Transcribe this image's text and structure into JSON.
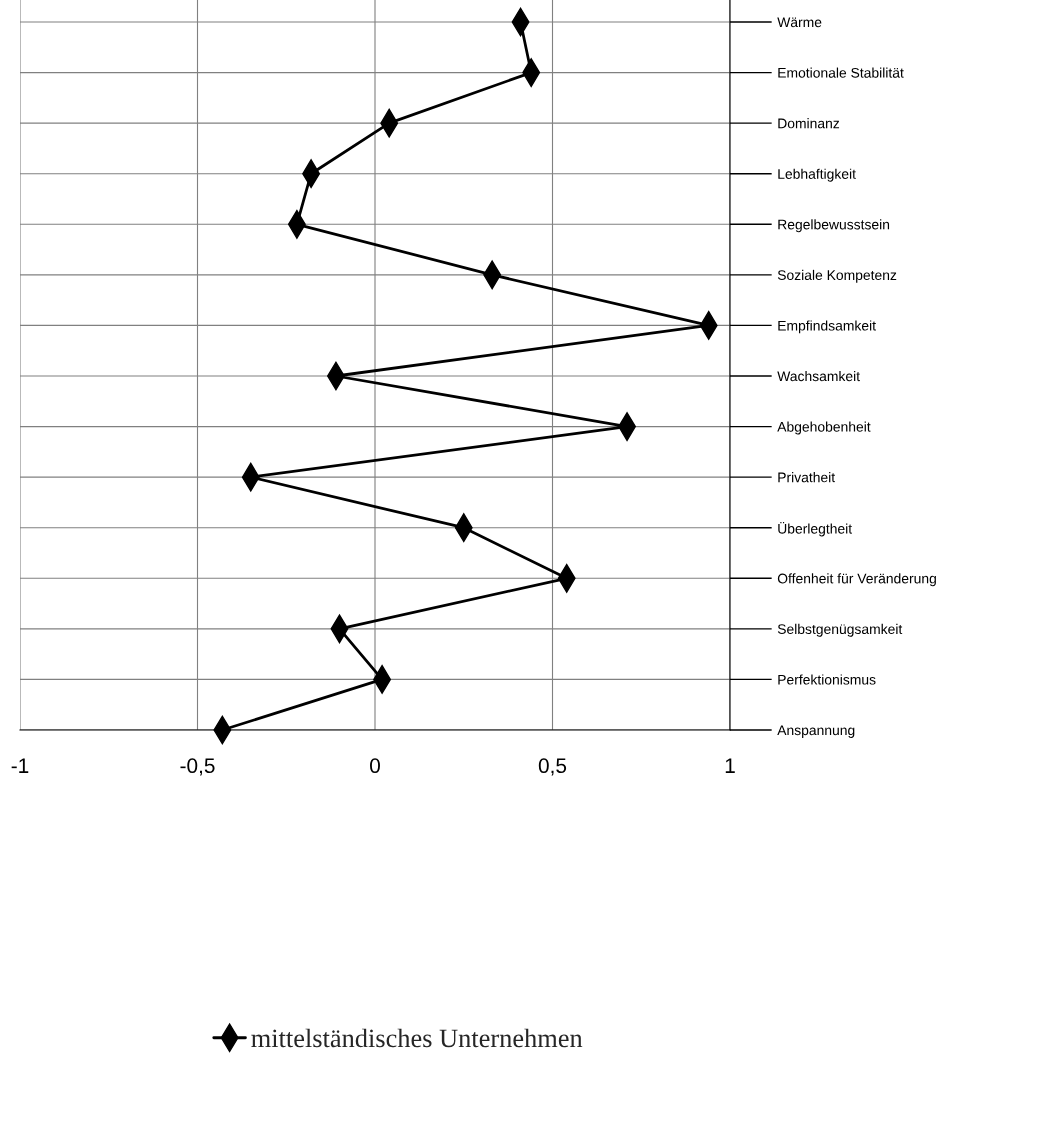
{
  "chart_data": {
    "type": "line",
    "orientation": "horizontal",
    "categories": [
      "Wärme",
      "Emotionale Stabilität",
      "Dominanz",
      "Lebhaftigkeit",
      "Regelbewusstsein",
      "Soziale Kompetenz",
      "Empfindsamkeit",
      "Wachsamkeit",
      "Abgehobenheit",
      "Privatheit",
      "Überlegtheit",
      "Offenheit für Veränderung",
      "Selbstgenügsamkeit",
      "Perfektionismus",
      "Anspannung"
    ],
    "series": [
      {
        "name": "mittelständisches Unternehmen",
        "color": "#000000",
        "values": [
          0.41,
          0.44,
          0.04,
          -0.18,
          -0.22,
          0.33,
          0.94,
          -0.11,
          0.71,
          -0.35,
          0.25,
          0.54,
          -0.1,
          0.02,
          -0.43
        ]
      }
    ],
    "xlim": [
      -1,
      1
    ],
    "xticks": [
      -1,
      {
        "value": -0.5,
        "label": "-0,5"
      },
      0,
      {
        "value": 0.5,
        "label": "0,5"
      },
      1
    ],
    "grid": true,
    "legend": "bottom",
    "marker": "diamond",
    "line_style": "solid"
  }
}
